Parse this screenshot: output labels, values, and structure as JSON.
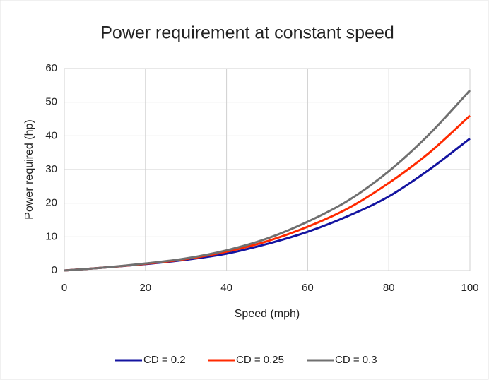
{
  "chart_data": {
    "type": "line",
    "title": "Power requirement at constant speed",
    "x_label": "Speed (mph)",
    "y_label": "Power required  (hp)",
    "x": [
      0,
      10,
      20,
      30,
      40,
      50,
      60,
      70,
      80,
      90,
      100
    ],
    "series": [
      {
        "name": "CD = 0.2",
        "color": "#1414a0",
        "values": [
          0,
          0.9,
          1.9,
          3.2,
          5,
          7.9,
          11.5,
          16.2,
          22,
          30,
          39.2
        ]
      },
      {
        "name": "CD = 0.25",
        "color": "#ff2a00",
        "values": [
          0,
          0.9,
          2,
          3.4,
          5.6,
          8.7,
          13,
          18.5,
          26,
          35,
          46
        ]
      },
      {
        "name": "CD = 0.3",
        "color": "#707070",
        "values": [
          0,
          0.9,
          2.1,
          3.6,
          6,
          9.5,
          14.5,
          20.8,
          29.5,
          40.5,
          53.5
        ]
      }
    ],
    "xlim": [
      0,
      100
    ],
    "xticks": [
      0,
      20,
      40,
      60,
      80,
      100
    ],
    "ylim": [
      0,
      60
    ],
    "yticks": [
      0,
      10,
      20,
      30,
      40,
      50,
      60
    ],
    "grid": true,
    "legend": "bottom"
  }
}
